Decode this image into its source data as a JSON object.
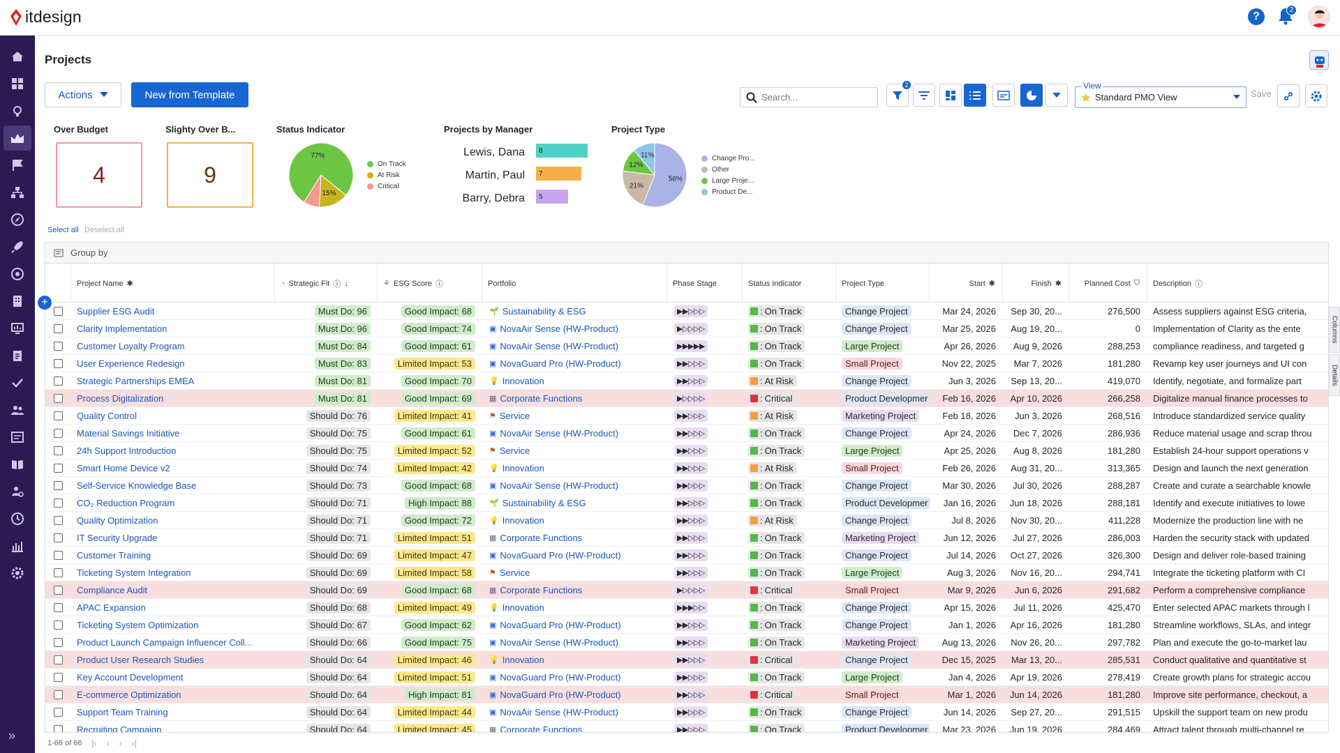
{
  "app": {
    "brand": "itdesign",
    "notifications_count": "2"
  },
  "page": {
    "title": "Projects"
  },
  "toolbar": {
    "actions_label": "Actions",
    "new_template_label": "New from Template",
    "search_placeholder": "Search...",
    "filter_count": "2",
    "view_label": "View",
    "view_value": "Standard PMO View",
    "save_label": "Save"
  },
  "widgets": {
    "over_budget": {
      "title": "Over Budget",
      "value": "4"
    },
    "slightly_over": {
      "title": "Slighty Over B...",
      "value": "9"
    },
    "status_indicator": {
      "title": "Status Indicator",
      "slices": [
        {
          "label": "On Track",
          "pct_label": "77%",
          "value": 77,
          "color": "#6cc644"
        },
        {
          "label": "At Risk",
          "pct_label": "15%",
          "value": 15,
          "color": "#c9b41e"
        },
        {
          "label": "Critical",
          "pct_label": "",
          "value": 8,
          "color": "#f29a92"
        }
      ]
    },
    "projects_by_manager": {
      "title": "Projects by Manager",
      "rows": [
        {
          "name": "Lewis, Dana",
          "value": 8,
          "value_label": "8",
          "color": "#4fd1c5"
        },
        {
          "name": "Martin, Paul",
          "value": 7,
          "value_label": "7",
          "color": "#f6b04a"
        },
        {
          "name": "Barry, Debra",
          "value": 5,
          "value_label": "5",
          "color": "#c7a4ec"
        }
      ]
    },
    "project_type": {
      "title": "Project Type",
      "slices": [
        {
          "label": "Change Pro...",
          "pct_label": "56%",
          "value": 56,
          "color": "#a9b3e6"
        },
        {
          "label": "Other",
          "pct_label": "21%",
          "value": 21,
          "color": "#c9b8a6"
        },
        {
          "label": "Large Proje...",
          "pct_label": "12%",
          "value": 12,
          "color": "#6cc644"
        },
        {
          "label": "Product De...",
          "pct_label": "11%",
          "value": 11,
          "color": "#8ec6e8"
        }
      ]
    }
  },
  "selection": {
    "select_all": "Select all",
    "deselect_all": "Deselect all"
  },
  "grid": {
    "group_by_label": "Group by",
    "columns": {
      "project_name": "Project Name",
      "strategic_fit": "Strategic Fit",
      "esg_score": "ESG Score",
      "portfolio": "Portfolio",
      "phase_stage": "Phase Stage",
      "status_indicator": "Status Indicator",
      "project_type": "Project Type",
      "start": "Start",
      "finish": "Finish",
      "planned_cost": "Planned Cost",
      "description": "Description"
    },
    "rows": [
      [
        "Supplier ESG Audit",
        "Must Do: 96",
        "Good Impact: 68",
        "Sustainability & ESG",
        "▶▶▷▷▷",
        "On Track",
        "Change Project",
        "Mar 24, 2026",
        "Sep 30, 20...",
        "276,500",
        "Assess suppliers against ESG criteria,"
      ],
      [
        "Clarity Implementation",
        "Must Do: 96",
        "Good Impact: 74",
        "NovaAir Sense (HW-Product)",
        "▶▷▷▷▷",
        "On Track",
        "Change Project",
        "Mar 25, 2026",
        "Aug 19, 20...",
        "0",
        "Implementation of Clarity as the ente"
      ],
      [
        "Customer Loyalty Program",
        "Must Do: 84",
        "Good Impact: 61",
        "NovaAir Sense (HW-Product)",
        "▶▶▶▶▶",
        "On Track",
        "Large Project",
        "Apr 26, 2026",
        "Aug 9, 2026",
        "288,253",
        "compliance readiness, and targeted g"
      ],
      [
        "User Experience Redesign",
        "Must Do: 83",
        "Limited Impact: 53",
        "NovaGuard Pro (HW-Product)",
        "▶▶▷▷▷",
        "On Track",
        "Small Project",
        "Nov 22, 2025",
        "Mar 7, 2026",
        "181,280",
        "Revamp key user journeys and UI con"
      ],
      [
        "Strategic Partnerships EMEA",
        "Must Do: 81",
        "Good Impact: 70",
        "Innovation",
        "▶▶▷▷▷",
        "At Risk",
        "Change Project",
        "Jun 3, 2026",
        "Sep 13, 20...",
        "419,070",
        "Identify, negotiate, and formalize part"
      ],
      [
        "Process Digitalization",
        "Must Do: 81",
        "Good Impact: 69",
        "Corporate Functions",
        "▶▷▷▷▷",
        "Critical",
        "Product Developmer",
        "Feb 16, 2026",
        "Apr 10, 2026",
        "266,258",
        "Digitalize manual finance processes to"
      ],
      [
        "Quality Control",
        "Should Do: 76",
        "Limited Impact: 41",
        "Service",
        "▶▶▷▷▷",
        "At Risk",
        "Marketing Project",
        "Feb 18, 2026",
        "Jun 3, 2026",
        "268,516",
        "Introduce standardized service quality"
      ],
      [
        "Material Savings Initiative",
        "Should Do: 75",
        "Good Impact: 61",
        "NovaAir Sense (HW-Product)",
        "▶▶▷▷▷",
        "On Track",
        "Change Project",
        "Apr 24, 2026",
        "Dec 7, 2026",
        "286,936",
        "Reduce material usage and scrap throu"
      ],
      [
        "24h Support Introduction",
        "Should Do: 75",
        "Limited Impact: 52",
        "Service",
        "▶▶▷▷▷",
        "On Track",
        "Large Project",
        "Apr 25, 2026",
        "Aug 8, 2026",
        "181,280",
        "Establish 24-hour support operations v"
      ],
      [
        "Smart Home Device v2",
        "Should Do: 74",
        "Limited Impact: 42",
        "Innovation",
        "▶▶▷▷▷",
        "At Risk",
        "Small Project",
        "Feb 26, 2026",
        "Aug 31, 20...",
        "313,365",
        "Design and launch the next generation"
      ],
      [
        "Self-Service Knowledge Base",
        "Should Do: 73",
        "Good Impact: 68",
        "NovaAir Sense (HW-Product)",
        "▶▶▷▷▷",
        "On Track",
        "Change Project",
        "Mar 30, 2026",
        "Jul 30, 2026",
        "288,287",
        "Create and curate a searchable knowle"
      ],
      [
        "CO₂ Reduction Program",
        "Should Do: 71",
        "High Impact: 88",
        "Sustainability & ESG",
        "▶▶▷▷▷",
        "On Track",
        "Product Developmer",
        "Jan 16, 2026",
        "Jun 18, 2026",
        "288,181",
        "Identify and execute initiatives to lowe"
      ],
      [
        "Quality Optimization",
        "Should Do: 71",
        "Good Impact: 72",
        "Innovation",
        "▶▶▷▷▷",
        "At Risk",
        "Change Project",
        "Jul 8, 2026",
        "Nov 30, 20...",
        "411,228",
        "Modernize the production line with ne"
      ],
      [
        "IT Security Upgrade",
        "Should Do: 71",
        "Limited Impact: 51",
        "Corporate Functions",
        "▶▶▷▷▷",
        "On Track",
        "Marketing Project",
        "Jun 12, 2026",
        "Jul 27, 2026",
        "286,003",
        "Harden the security stack with updated"
      ],
      [
        "Customer Training",
        "Should Do: 69",
        "Limited Impact: 47",
        "NovaGuard Pro (HW-Product)",
        "▶▶▷▷▷",
        "On Track",
        "Change Project",
        "Jul 14, 2026",
        "Oct 27, 2026",
        "326,300",
        "Design and deliver role-based training"
      ],
      [
        "Ticketing System Integration",
        "Should Do: 69",
        "Limited Impact: 58",
        "Service",
        "▶▶▷▷▷",
        "On Track",
        "Large Project",
        "Aug 3, 2026",
        "Nov 16, 20...",
        "294,741",
        "Integrate the ticketing platform with CI"
      ],
      [
        "Compliance Audit",
        "Should Do: 69",
        "Good Impact: 68",
        "Corporate Functions",
        "▶▷▷▷▷",
        "Critical",
        "Small Project",
        "Mar 9, 2026",
        "Jun 6, 2026",
        "291,682",
        "Perform a comprehensive compliance"
      ],
      [
        "APAC Expansion",
        "Should Do: 68",
        "Limited Impact: 49",
        "Innovation",
        "▶▶▶▷▷",
        "On Track",
        "Change Project",
        "Apr 15, 2026",
        "Jul 11, 2026",
        "425,470",
        "Enter selected APAC markets through l"
      ],
      [
        "Ticketing System Optimization",
        "Should Do: 67",
        "Good Impact: 62",
        "NovaGuard Pro (HW-Product)",
        "▶▶▷▷▷",
        "On Track",
        "Change Project",
        "Jan 1, 2026",
        "Apr 16, 2026",
        "181,280",
        "Streamline workflows, SLAs, and integr"
      ],
      [
        "Product Launch Campaign Influencer Coll...",
        "Should Do: 66",
        "Good Impact: 75",
        "NovaAir Sense (HW-Product)",
        "▶▶▷▷▷",
        "On Track",
        "Marketing Project",
        "Aug 13, 2026",
        "Nov 26, 20...",
        "297,782",
        "Plan and execute the go-to-market lau"
      ],
      [
        "Product User Research Studies",
        "Should Do: 64",
        "Limited Impact: 46",
        "Innovation",
        "▶▶▷▷▷",
        "Critical",
        "Change Project",
        "Dec 15, 2025",
        "Mar 13, 20...",
        "285,531",
        "Conduct qualitative and quantitative st"
      ],
      [
        "Key Account Development",
        "Should Do: 64",
        "Limited Impact: 51",
        "NovaGuard Pro (HW-Product)",
        "▶▶▷▷▷",
        "On Track",
        "Large Project",
        "Jan 4, 2026",
        "Apr 19, 2026",
        "278,419",
        "Create growth plans for strategic accou"
      ],
      [
        "E-commerce Optimization",
        "Should Do: 64",
        "High Impact: 81",
        "NovaGuard Pro (HW-Product)",
        "▶▶▷▷▷",
        "Critical",
        "Small Project",
        "Mar 1, 2026",
        "Jun 14, 2026",
        "181,280",
        "Improve site performance, checkout, a"
      ],
      [
        "Support Team Training",
        "Should Do: 64",
        "Limited Impact: 44",
        "NovaAir Sense (HW-Product)",
        "▶▶▷▷▷",
        "On Track",
        "Change Project",
        "Jun 14, 2026",
        "Sep 27, 20...",
        "291,515",
        "Upskill the support team on new produ"
      ],
      [
        "Recruiting Campaign",
        "Should Do: 64",
        "Limited Impact: 45",
        "Corporate Functions",
        "▶▶▷▷▷",
        "On Track",
        "Product Developmer",
        "Mar 23, 2026",
        "Jun 19, 2026",
        "284,469",
        "Attract talent through multi-channel re"
      ]
    ]
  },
  "side_tabs": {
    "columns": "Columns",
    "details": "Details"
  },
  "footer": {
    "range": "1-66 of 66"
  }
}
